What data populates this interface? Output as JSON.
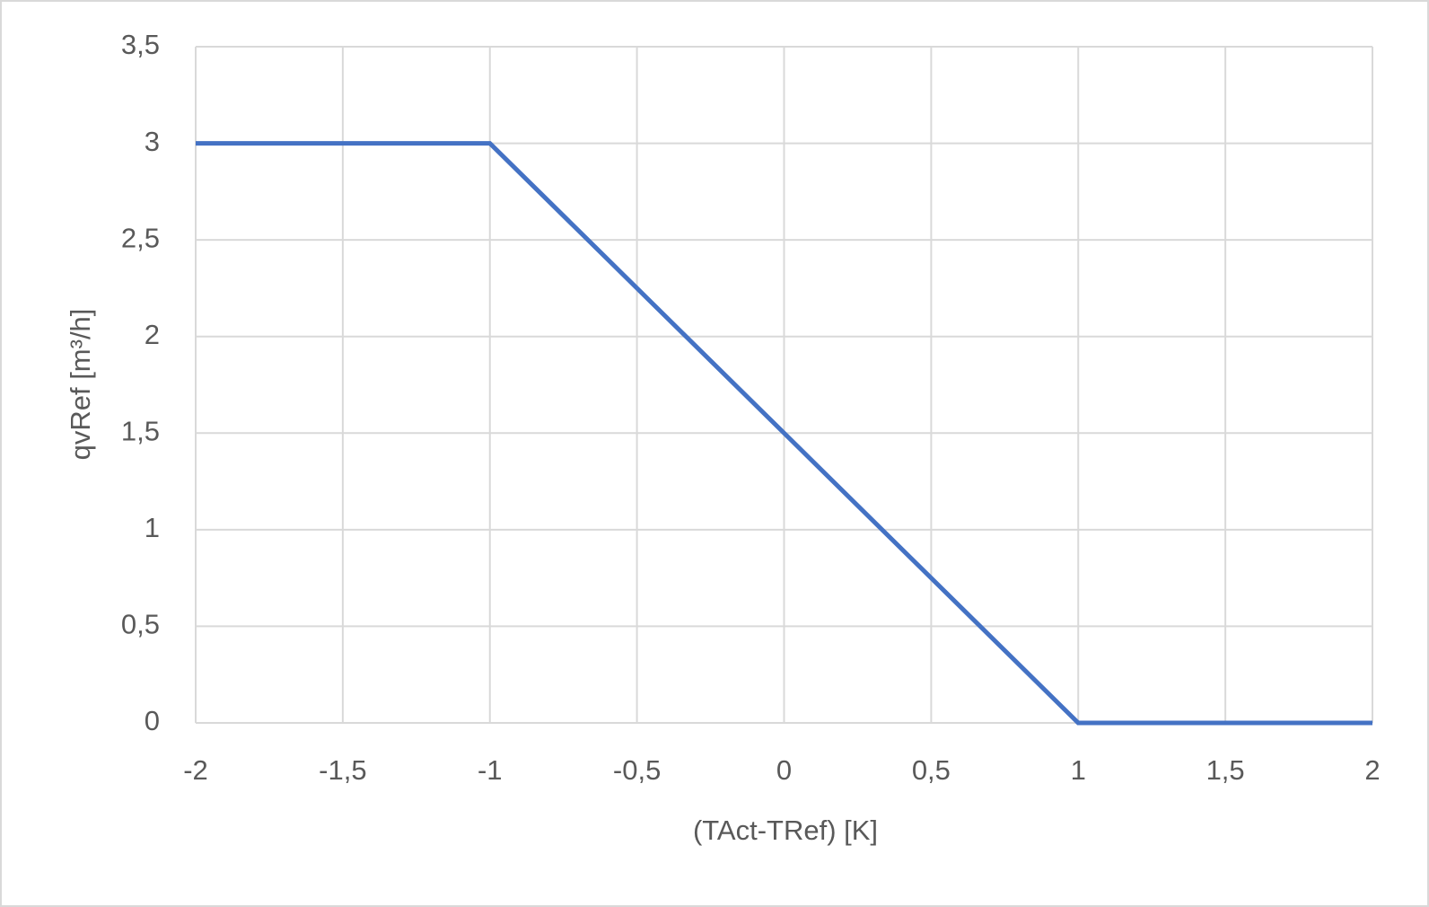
{
  "chart_data": {
    "type": "line",
    "x_label": "(TAct-TRef) [K]",
    "y_label": "qvRef [m³/h]",
    "x": [
      -2,
      -1,
      1,
      2
    ],
    "series": [
      {
        "color": "#4472c4",
        "values": [
          3,
          3,
          0,
          0
        ]
      }
    ],
    "xlim": [
      -2,
      2
    ],
    "xticks": [
      -2,
      {
        "value": -1.5,
        "label": "-1,5"
      },
      -1,
      {
        "value": -0.5,
        "label": "-0,5"
      },
      0,
      {
        "value": 0.5,
        "label": "0,5"
      },
      1,
      {
        "value": 1.5,
        "label": "1,5"
      },
      2
    ],
    "ylim": [
      0,
      3.5
    ],
    "yticks": [
      0,
      {
        "value": 0.5,
        "label": "0,5"
      },
      1,
      {
        "value": 1.5,
        "label": "1,5"
      },
      2,
      {
        "value": 2.5,
        "label": "2,5"
      },
      3,
      {
        "value": 3.5,
        "label": "3,5"
      }
    ],
    "grid": true
  }
}
